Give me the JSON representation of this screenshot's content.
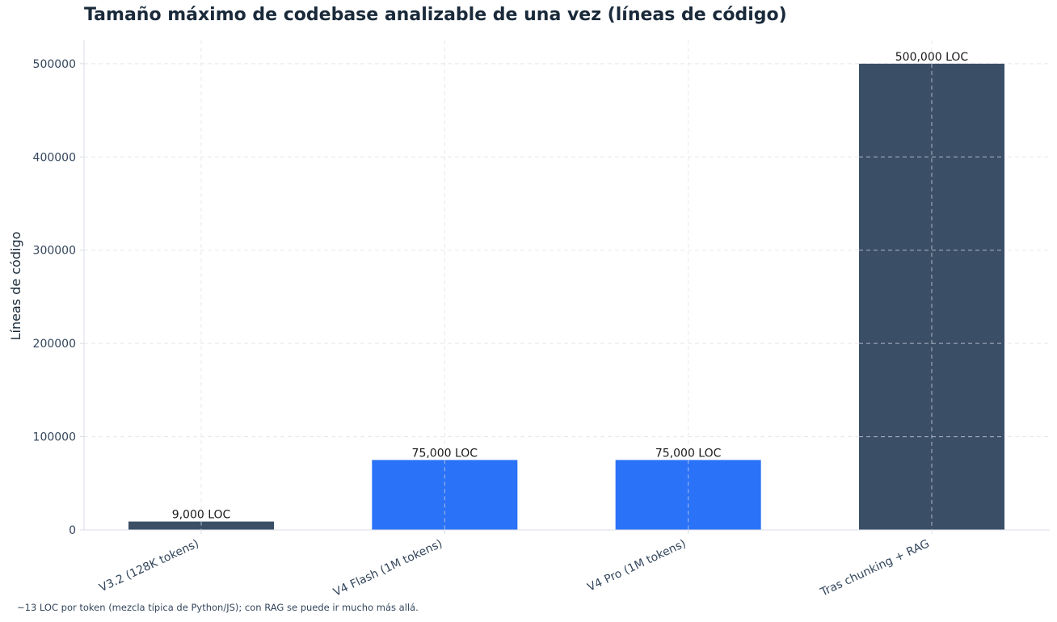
{
  "chart_data": {
    "type": "bar",
    "title": "Tamaño máximo de codebase analizable de una vez (líneas de código)",
    "xlabel": "",
    "ylabel": "Líneas de código",
    "categories": [
      "V3.2 (128K tokens)",
      "V4 Flash (1M tokens)",
      "V4 Pro (1M tokens)",
      "Tras chunking + RAG"
    ],
    "values": [
      9000,
      75000,
      75000,
      500000
    ],
    "data_labels": [
      "9,000 LOC",
      "75,000 LOC",
      "75,000 LOC",
      "500,000 LOC"
    ],
    "bar_colors": [
      "#3a4e66",
      "#2a72f7",
      "#2a72f7",
      "#3a4e66"
    ],
    "ylim": [
      0,
      525000
    ],
    "yticks": [
      0,
      100000,
      200000,
      300000,
      400000,
      500000
    ],
    "grid": true,
    "legend": "none"
  },
  "footnote": "~13 LOC por token (mezcla típica de Python/JS); con RAG se puede ir mucho más allá.",
  "colors": {
    "title": "#1a2a3a",
    "tick_text": "#34465c",
    "grid": "#e6e8ee",
    "axis": "#d8dce4"
  }
}
